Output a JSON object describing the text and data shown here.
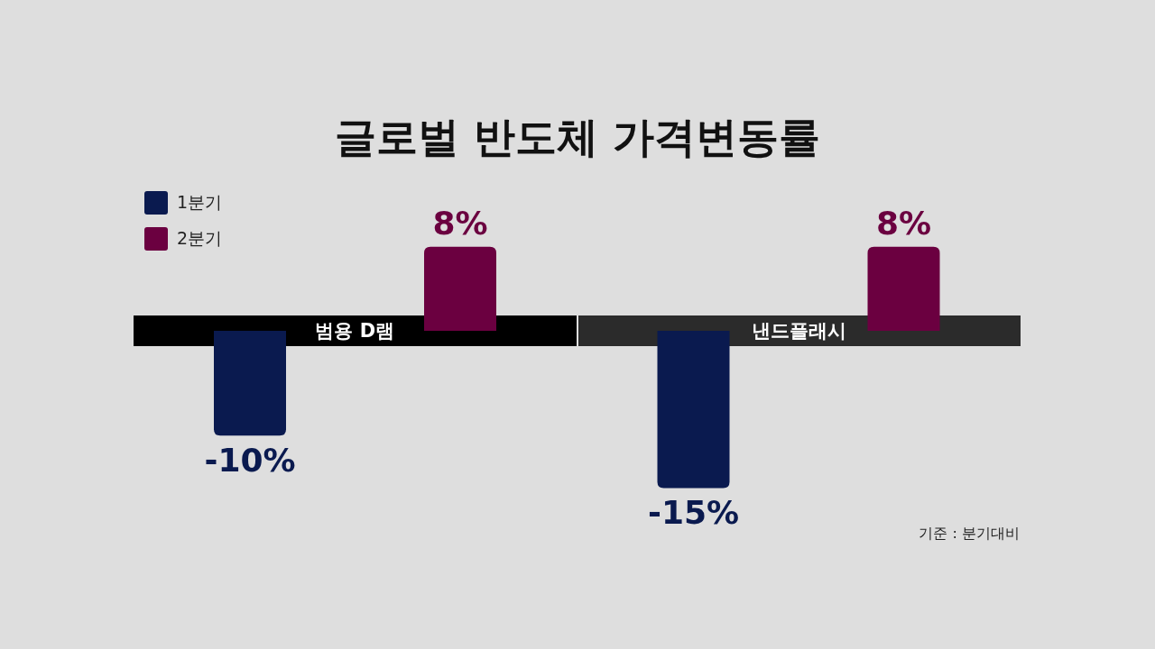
{
  "chart_data": {
    "type": "bar",
    "title": "글로벌 반도체 가격변동률",
    "categories": [
      "범용 D램",
      "낸드플래시"
    ],
    "series": [
      {
        "name": "1분기",
        "color": "#0a1a4f",
        "values": [
          -10,
          -15
        ],
        "value_labels": [
          "-10%",
          "-15%"
        ]
      },
      {
        "name": "2분기",
        "color": "#6b0040",
        "values": [
          8,
          8
        ],
        "value_labels": [
          "8%",
          "8%"
        ]
      }
    ],
    "legend": "top left",
    "annotations": [
      "기준 : 분기대비"
    ]
  }
}
